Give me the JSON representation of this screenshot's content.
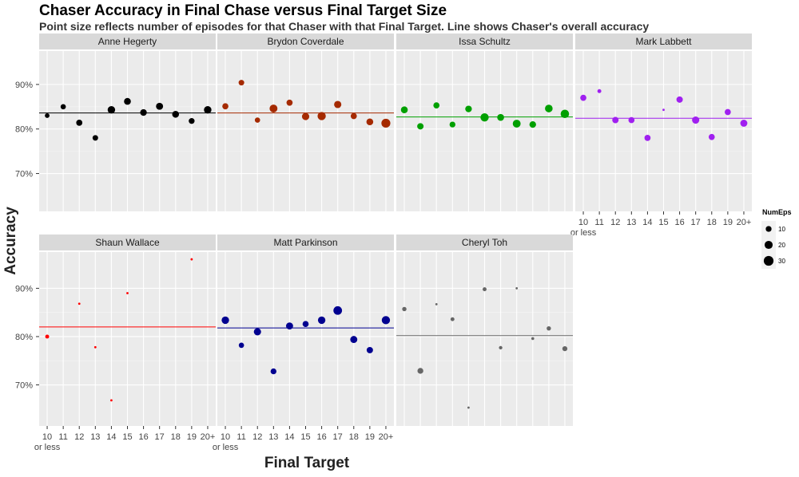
{
  "chart_data": {
    "type": "scatter",
    "title": "Chaser Accuracy in Final Chase versus Final Target Size",
    "subtitle": "Point size reflects number of episodes for that Chaser with that Final Target. Line shows Chaser's overall accuracy",
    "xlabel": "Final Target",
    "ylabel": "Accuracy",
    "categories": [
      "10\nor less",
      "11",
      "12",
      "13",
      "14",
      "15",
      "16",
      "17",
      "18",
      "19",
      "20+"
    ],
    "y_ticks": [
      0.7,
      0.8,
      0.9
    ],
    "y_tick_labels": [
      "70%",
      "80%",
      "90%"
    ],
    "ylim": [
      0.615,
      0.975
    ],
    "grid": true,
    "legend": {
      "title": "NumEps",
      "placement": "right",
      "entries": [
        10,
        20,
        30
      ]
    },
    "series": [
      {
        "name": "Anne Hegerty",
        "color": "#000000",
        "overall": 0.836,
        "points": [
          [
            0,
            0.83,
            6
          ],
          [
            1,
            0.85,
            8
          ],
          [
            2,
            0.814,
            11
          ],
          [
            3,
            0.78,
            9
          ],
          [
            4,
            0.843,
            17
          ],
          [
            5,
            0.862,
            14
          ],
          [
            6,
            0.837,
            13
          ],
          [
            7,
            0.851,
            15
          ],
          [
            8,
            0.833,
            14
          ],
          [
            9,
            0.818,
            10
          ],
          [
            10,
            0.843,
            17
          ]
        ]
      },
      {
        "name": "Brydon Coverdale",
        "color": "#a52a00",
        "overall": 0.836,
        "points": [
          [
            0,
            0.851,
            11
          ],
          [
            1,
            0.904,
            9
          ],
          [
            2,
            0.82,
            8
          ],
          [
            3,
            0.846,
            19
          ],
          [
            4,
            0.859,
            11
          ],
          [
            5,
            0.828,
            16
          ],
          [
            6,
            0.829,
            21
          ],
          [
            7,
            0.855,
            16
          ],
          [
            8,
            0.829,
            11
          ],
          [
            9,
            0.816,
            14
          ],
          [
            10,
            0.813,
            25
          ]
        ]
      },
      {
        "name": "Issa Schultz",
        "color": "#00a000",
        "overall": 0.827,
        "points": [
          [
            0,
            0.843,
            14
          ],
          [
            1,
            0.806,
            12
          ],
          [
            2,
            0.853,
            11
          ],
          [
            3,
            0.81,
            10
          ],
          [
            4,
            0.845,
            13
          ],
          [
            5,
            0.826,
            21
          ],
          [
            6,
            0.826,
            14
          ],
          [
            7,
            0.812,
            19
          ],
          [
            8,
            0.81,
            13
          ],
          [
            9,
            0.846,
            18
          ],
          [
            10,
            0.834,
            22
          ]
        ]
      },
      {
        "name": "Mark Labbett",
        "color": "#a020f0",
        "overall": 0.824,
        "points": [
          [
            0,
            0.87,
            11
          ],
          [
            1,
            0.885,
            4
          ],
          [
            2,
            0.82,
            12
          ],
          [
            3,
            0.82,
            11
          ],
          [
            4,
            0.78,
            11
          ],
          [
            5,
            0.843,
            1
          ],
          [
            6,
            0.866,
            12
          ],
          [
            7,
            0.82,
            16
          ],
          [
            8,
            0.782,
            11
          ],
          [
            9,
            0.838,
            11
          ],
          [
            10,
            0.813,
            15
          ]
        ]
      },
      {
        "name": "Shaun Wallace",
        "color": "#ff0000",
        "overall": 0.82,
        "points": [
          [
            0,
            0.8,
            4
          ],
          [
            2,
            0.868,
            1
          ],
          [
            3,
            0.778,
            1
          ],
          [
            4,
            0.668,
            1
          ],
          [
            5,
            0.89,
            1
          ],
          [
            9,
            0.96,
            1
          ]
        ]
      },
      {
        "name": "Matt Parkinson",
        "color": "#000090",
        "overall": 0.818,
        "points": [
          [
            0,
            0.834,
            17
          ],
          [
            1,
            0.782,
            8
          ],
          [
            2,
            0.81,
            16
          ],
          [
            3,
            0.728,
            10
          ],
          [
            4,
            0.822,
            15
          ],
          [
            5,
            0.826,
            11
          ],
          [
            6,
            0.834,
            17
          ],
          [
            7,
            0.854,
            23
          ],
          [
            8,
            0.794,
            15
          ],
          [
            9,
            0.772,
            12
          ],
          [
            10,
            0.834,
            21
          ]
        ]
      },
      {
        "name": "Cheryl Toh",
        "color": "#666666",
        "overall": 0.802,
        "points": [
          [
            0,
            0.857,
            5
          ],
          [
            1,
            0.729,
            10
          ],
          [
            2,
            0.867,
            1
          ],
          [
            3,
            0.836,
            4
          ],
          [
            4,
            0.653,
            1
          ],
          [
            5,
            0.898,
            4
          ],
          [
            6,
            0.777,
            3
          ],
          [
            7,
            0.9,
            1
          ],
          [
            8,
            0.796,
            2
          ],
          [
            9,
            0.817,
            5
          ],
          [
            10,
            0.775,
            7
          ]
        ]
      }
    ]
  }
}
